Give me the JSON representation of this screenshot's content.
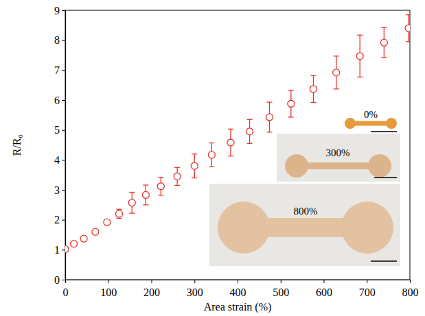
{
  "chart_data": {
    "type": "scatter",
    "x_label": "Area strain (%)",
    "y_label": "R/R₀",
    "x": [
      0,
      20,
      43,
      70,
      97,
      125,
      155,
      187,
      222,
      260,
      300,
      340,
      384,
      428,
      474,
      524,
      576,
      629,
      684,
      740,
      797
    ],
    "series": [
      {
        "color": "#e8322a",
        "marker": "circle-open",
        "values": [
          1.02,
          1.2,
          1.37,
          1.6,
          1.92,
          2.2,
          2.57,
          2.83,
          3.12,
          3.45,
          3.8,
          4.17,
          4.58,
          4.95,
          5.43,
          5.88,
          6.37,
          6.92,
          7.47,
          7.92,
          8.4
        ],
        "errors": [
          0.05,
          0.05,
          0.07,
          0.08,
          0.07,
          0.15,
          0.35,
          0.33,
          0.3,
          0.3,
          0.4,
          0.4,
          0.45,
          0.4,
          0.5,
          0.45,
          0.45,
          0.55,
          0.7,
          0.5,
          0.45
        ]
      }
    ],
    "xlim": [
      0,
      800
    ],
    "xticks": [
      0,
      100,
      200,
      300,
      400,
      500,
      600,
      700,
      800
    ],
    "ylim": [
      0,
      9
    ],
    "yticks": [
      0,
      1,
      2,
      3,
      4,
      5,
      6,
      7,
      8,
      9
    ],
    "grid": false,
    "annotations": [
      {
        "text": "0%"
      },
      {
        "text": "300%"
      },
      {
        "text": "800%"
      }
    ]
  }
}
